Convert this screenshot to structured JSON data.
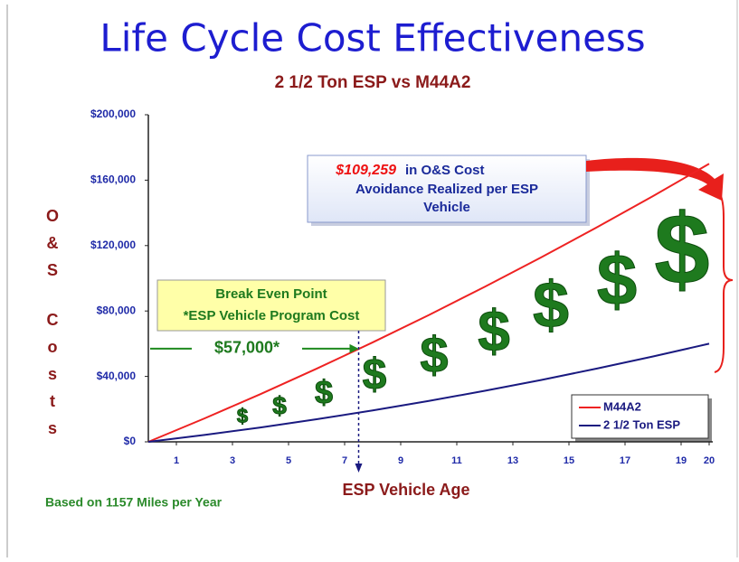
{
  "chart_data": {
    "type": "line",
    "title": "Life Cycle Cost Effectiveness",
    "subtitle": "2 1/2 Ton ESP vs M44A2",
    "x_label": "ESP Vehicle Age",
    "y_label": "O&S Costs",
    "x": [
      0,
      2,
      4,
      6,
      8,
      10,
      12,
      14,
      16,
      18,
      20
    ],
    "series": [
      {
        "name": "M44A2",
        "color": "#ee2222",
        "values": [
          0,
          14300,
          29200,
          44700,
          60800,
          77500,
          94800,
          112700,
          131200,
          150300,
          170000
        ]
      },
      {
        "name": "2 1/2 Ton ESP",
        "color": "#1a1a80",
        "values": [
          0,
          4200,
          8800,
          13800,
          19200,
          25000,
          31200,
          37800,
          44800,
          52200,
          60000
        ]
      }
    ],
    "xlim": [
      0,
      20
    ],
    "xticks": [
      1,
      3,
      5,
      7,
      9,
      11,
      13,
      15,
      17,
      19,
      20
    ],
    "ylim": [
      0,
      200000
    ],
    "yticks": [
      {
        "value": 0,
        "label": "$0"
      },
      {
        "value": 40000,
        "label": "$40,000"
      },
      {
        "value": 80000,
        "label": "$80,000"
      },
      {
        "value": 120000,
        "label": "$120,000"
      },
      {
        "value": 160000,
        "label": "$160,000"
      },
      {
        "value": 200000,
        "label": "$200,000"
      }
    ],
    "legend": "bottom-right",
    "break_even": {
      "title": "Break Even Point",
      "subtitle": "*ESP Vehicle Program Cost",
      "x": 7.5,
      "value": 57000,
      "label": "$57,000*"
    },
    "avoidance": {
      "value_label": "$109,259",
      "line1": "in O&S Cost",
      "line2": "Avoidance Realized per ESP",
      "line3": "Vehicle"
    },
    "dollar_symbol": "$",
    "footnote": "Based on 1157 Miles per Year"
  }
}
